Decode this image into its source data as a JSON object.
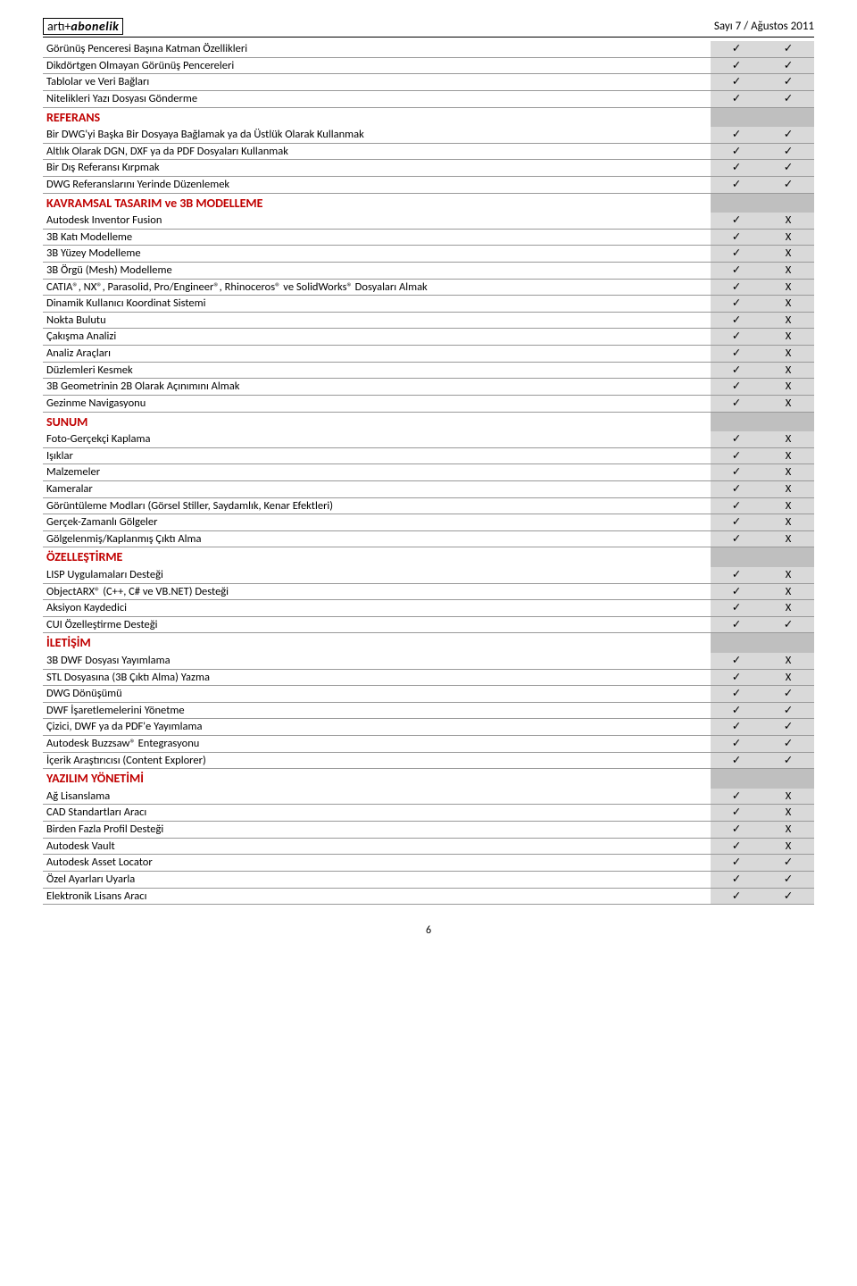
{
  "header": {
    "brand_plain": "artı",
    "brand_plus": "+",
    "brand_italic": "abonelik",
    "issue": "Sayı 7 / Ağustos 2011"
  },
  "page_number": "6",
  "check": "✓",
  "x": "X",
  "sections": [
    {
      "type": "rows",
      "rows": [
        {
          "label": "Görünüş Penceresi Başına Katman Özellikleri",
          "c1": "✓",
          "c2": "✓"
        },
        {
          "label": "Dikdörtgen Olmayan Görünüş Pencereleri",
          "c1": "✓",
          "c2": "✓"
        },
        {
          "label": "Tablolar ve Veri Bağları",
          "c1": "✓",
          "c2": "✓"
        },
        {
          "label": "Nitelikleri Yazı Dosyası Gönderme",
          "c1": "✓",
          "c2": "✓"
        }
      ]
    },
    {
      "type": "section",
      "title": "REFERANS"
    },
    {
      "type": "rows",
      "rows": [
        {
          "label": "Bir DWG'yi Başka Bir Dosyaya Bağlamak ya da Üstlük Olarak Kullanmak",
          "c1": "✓",
          "c2": "✓"
        },
        {
          "label": "Altlık Olarak DGN, DXF ya da PDF Dosyaları Kullanmak",
          "c1": "✓",
          "c2": "✓"
        },
        {
          "label": "Bir Dış Referansı Kırpmak",
          "c1": "✓",
          "c2": "✓"
        },
        {
          "label": "DWG Referanslarını Yerinde Düzenlemek",
          "c1": "✓",
          "c2": "✓"
        }
      ]
    },
    {
      "type": "section",
      "title": "KAVRAMSAL TASARIM ve 3B MODELLEME"
    },
    {
      "type": "rows",
      "rows": [
        {
          "label": "Autodesk Inventor Fusion",
          "c1": "✓",
          "c2": "X"
        },
        {
          "label": "3B Katı Modelleme",
          "c1": "✓",
          "c2": "X"
        },
        {
          "label": "3B Yüzey Modelleme",
          "c1": "✓",
          "c2": "X"
        },
        {
          "label": "3B Örgü (Mesh) Modelleme",
          "c1": "✓",
          "c2": "X"
        },
        {
          "label": "CATIA®, NX®, Parasolid, Pro/Engineer®, Rhinoceros® ve SolidWorks® Dosyaları  Almak",
          "c1": "✓",
          "c2": "X"
        },
        {
          "label": "Dinamik Kullanıcı Koordinat Sistemi",
          "c1": "✓",
          "c2": "X"
        },
        {
          "label": "Nokta Bulutu",
          "c1": "✓",
          "c2": "X"
        },
        {
          "label": "Çakışma Analizi",
          "c1": "✓",
          "c2": "X"
        },
        {
          "label": "Analiz Araçları",
          "c1": "✓",
          "c2": "X"
        },
        {
          "label": "Düzlemleri Kesmek",
          "c1": "✓",
          "c2": "X"
        },
        {
          "label": "3B Geometrinin 2B Olarak Açınımını Almak",
          "c1": "✓",
          "c2": "X"
        },
        {
          "label": "Gezinme Navigasyonu",
          "c1": "✓",
          "c2": "X"
        }
      ]
    },
    {
      "type": "section",
      "title": "SUNUM"
    },
    {
      "type": "rows",
      "rows": [
        {
          "label": "Foto-Gerçekçi Kaplama",
          "c1": "✓",
          "c2": "X"
        },
        {
          "label": "Işıklar",
          "c1": "✓",
          "c2": "X"
        },
        {
          "label": "Malzemeler",
          "c1": "✓",
          "c2": "X"
        },
        {
          "label": "Kameralar",
          "c1": "✓",
          "c2": "X"
        },
        {
          "label": "Görüntüleme Modları (Görsel Stiller, Saydamlık, Kenar Efektleri)",
          "c1": "✓",
          "c2": "X"
        },
        {
          "label": "Gerçek-Zamanlı Gölgeler",
          "c1": "✓",
          "c2": "X"
        },
        {
          "label": "Gölgelenmiş/Kaplanmış Çıktı Alma",
          "c1": "✓",
          "c2": "X"
        }
      ]
    },
    {
      "type": "section",
      "title": "ÖZELLEŞTİRME"
    },
    {
      "type": "rows",
      "rows": [
        {
          "label": "LISP Uygulamaları Desteği",
          "c1": "✓",
          "c2": "X"
        },
        {
          "label": "ObjectARX® (C++, C# ve VB.NET) Desteği",
          "c1": "✓",
          "c2": "X"
        },
        {
          "label": "Aksiyon Kaydedici",
          "c1": "✓",
          "c2": "X"
        },
        {
          "label": "CUI Özelleştirme Desteği",
          "c1": "✓",
          "c2": "✓"
        }
      ]
    },
    {
      "type": "section",
      "title": "İLETİŞİM"
    },
    {
      "type": "rows",
      "rows": [
        {
          "label": "3B DWF Dosyası Yayımlama",
          "c1": "✓",
          "c2": "X"
        },
        {
          "label": "STL Dosyasına (3B Çıktı Alma) Yazma",
          "c1": "✓",
          "c2": "X"
        },
        {
          "label": "DWG Dönüşümü",
          "c1": "✓",
          "c2": "✓"
        },
        {
          "label": "DWF İşaretlemelerini Yönetme",
          "c1": "✓",
          "c2": "✓"
        },
        {
          "label": "Çizici, DWF ya da PDF'e Yayımlama",
          "c1": "✓",
          "c2": "✓"
        },
        {
          "label": "Autodesk Buzzsaw® Entegrasyonu",
          "c1": "✓",
          "c2": "✓"
        },
        {
          "label": "İçerik Araştırıcısı (Content Explorer)",
          "c1": "✓",
          "c2": "✓"
        }
      ]
    },
    {
      "type": "section",
      "title": "YAZILIM YÖNETİMİ"
    },
    {
      "type": "rows",
      "rows": [
        {
          "label": "Ağ Lisanslama",
          "c1": "✓",
          "c2": "X"
        },
        {
          "label": "CAD Standartları Aracı",
          "c1": "✓",
          "c2": "X"
        },
        {
          "label": "Birden Fazla Profil Desteği",
          "c1": "✓",
          "c2": "X"
        },
        {
          "label": "Autodesk Vault",
          "c1": "✓",
          "c2": "X"
        },
        {
          "label": "Autodesk Asset Locator",
          "c1": "✓",
          "c2": "✓"
        },
        {
          "label": "Özel Ayarları Uyarla",
          "c1": "✓",
          "c2": "✓"
        },
        {
          "label": "Elektronik Lisans Aracı",
          "c1": "✓",
          "c2": "✓"
        }
      ]
    }
  ]
}
